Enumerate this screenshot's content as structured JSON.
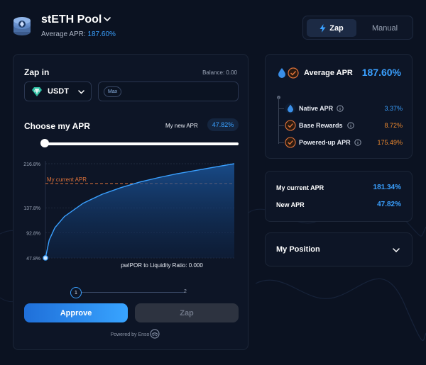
{
  "header": {
    "pool_title": "stETH Pool",
    "avg_apr_label": "Average APR:",
    "avg_apr_value": "187.60%"
  },
  "mode_toggle": {
    "zap_label": "Zap",
    "manual_label": "Manual",
    "active": "Zap"
  },
  "zap_in": {
    "label": "Zap in",
    "balance": "Balance: 0.00",
    "token": "USDT",
    "max_label": "Max",
    "amount_value": ""
  },
  "apr_chooser": {
    "label": "Choose my APR",
    "my_new_apr_label": "My new APR",
    "my_new_apr_value": "47.82%",
    "slider_level": 0.0
  },
  "chart_data": {
    "type": "area",
    "xlabel": "pwIPOR to Liquidity Ratio: 0.000",
    "ylabel": "",
    "yticks": [
      "47.8%",
      "92.8%",
      "137.8%",
      "216.8%"
    ],
    "ylim": [
      47.8,
      216.8
    ],
    "reference_line": {
      "label": "My current APR",
      "value": 181.34
    },
    "marker": {
      "x": 0,
      "y": 47.82
    },
    "curve_shape": "concave increasing",
    "x": [
      0,
      0.02,
      0.05,
      0.1,
      0.2,
      0.3,
      0.4,
      0.5,
      0.6,
      0.7,
      0.8,
      0.9,
      1.0
    ],
    "y": [
      47.8,
      80,
      102,
      122,
      146,
      162,
      174,
      184,
      192,
      199,
      205,
      211,
      216.8
    ]
  },
  "steps": {
    "step1": "1",
    "step2": "2",
    "current": 1
  },
  "actions": {
    "approve_label": "Approve",
    "zap_label": "Zap"
  },
  "powered_by": "Powered by Enso",
  "apr_panel": {
    "title": "Average APR",
    "value": "187.60%",
    "rows": [
      {
        "label": "Native APR",
        "value": "3.37%"
      },
      {
        "label": "Base Rewards",
        "value": "8.72%"
      },
      {
        "label": "Powered-up APR",
        "value": "175.49%"
      }
    ]
  },
  "comparison": {
    "current_label": "My current APR",
    "current_value": "181.34%",
    "new_label": "New APR",
    "new_value": "47.82%"
  },
  "position": {
    "label": "My Position"
  },
  "colors": {
    "accent": "#3aa0ff",
    "orange": "#f08a2e",
    "background": "#0b1221"
  },
  "icons": [
    "steth-pool-icon",
    "chevron-down-icon",
    "bolt-icon",
    "usdt-icon",
    "info-icon",
    "check-circle-icon",
    "drop-icon",
    "enso-icon"
  ]
}
